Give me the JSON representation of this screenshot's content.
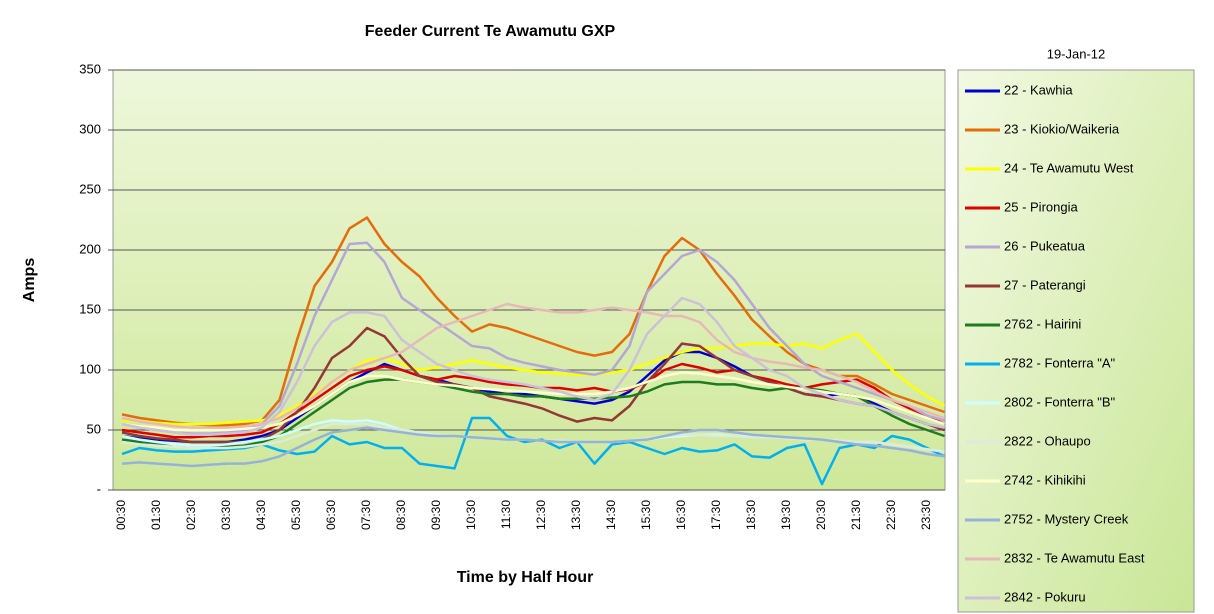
{
  "chart_data": {
    "type": "line",
    "title": "Feeder Current Te Awamutu GXP",
    "subtitle": "19-Jan-12",
    "x_label": "Time by Half Hour",
    "y_label": "Amps",
    "categories": [
      "00:30",
      null,
      "01:30",
      null,
      "02:30",
      null,
      "03:30",
      null,
      "04:30",
      null,
      "05:30",
      null,
      "06:30",
      null,
      "07:30",
      null,
      "08:30",
      null,
      "09:30",
      null,
      "10:30",
      null,
      "11:30",
      null,
      "12:30",
      null,
      "13:30",
      null,
      "14:30",
      null,
      "15:30",
      null,
      "16:30",
      null,
      "17:30",
      null,
      "18:30",
      null,
      "19:30",
      null,
      "20:30",
      null,
      "21:30",
      null,
      "22:30",
      null,
      "23:30",
      null
    ],
    "ylim": [
      0,
      350
    ],
    "yticks": [
      {
        "value": 0,
        "label": "-"
      },
      50,
      100,
      150,
      200,
      250,
      300,
      350
    ],
    "grid": true,
    "legend": "right",
    "series": [
      {
        "name": "22 - Kawhia",
        "color": "#0000cc",
        "values": [
          45,
          43,
          42,
          41,
          40,
          40,
          40,
          42,
          45,
          50,
          60,
          70,
          80,
          90,
          98,
          105,
          100,
          95,
          92,
          88,
          85,
          82,
          80,
          80,
          78,
          76,
          74,
          72,
          75,
          82,
          95,
          108,
          115,
          115,
          110,
          103,
          95,
          90,
          85,
          80,
          78,
          80,
          78,
          72,
          65,
          60,
          55,
          50
        ]
      },
      {
        "name": "23 - Kiokio/Waikeria",
        "color": "#e46c0a",
        "values": [
          63,
          60,
          58,
          56,
          55,
          54,
          54,
          55,
          58,
          75,
          125,
          170,
          190,
          218,
          227,
          205,
          190,
          178,
          160,
          145,
          132,
          138,
          135,
          130,
          125,
          120,
          115,
          112,
          115,
          130,
          165,
          195,
          210,
          200,
          180,
          162,
          142,
          128,
          115,
          105,
          100,
          95,
          95,
          88,
          80,
          75,
          70,
          65
        ]
      },
      {
        "name": "24 - Te Awamutu West",
        "color": "#ffff00",
        "values": [
          58,
          57,
          56,
          55,
          55,
          55,
          56,
          57,
          58,
          62,
          70,
          80,
          90,
          100,
          108,
          110,
          105,
          100,
          102,
          105,
          108,
          105,
          102,
          100,
          98,
          97,
          96,
          96,
          98,
          100,
          105,
          110,
          115,
          118,
          118,
          120,
          122,
          122,
          120,
          122,
          118,
          125,
          130,
          115,
          100,
          88,
          78,
          70
        ]
      },
      {
        "name": "25 - Pirongia",
        "color": "#e00000",
        "values": [
          50,
          48,
          46,
          44,
          44,
          45,
          45,
          46,
          48,
          55,
          65,
          75,
          85,
          95,
          100,
          103,
          100,
          95,
          92,
          95,
          93,
          90,
          88,
          87,
          85,
          85,
          83,
          85,
          82,
          84,
          90,
          100,
          105,
          102,
          98,
          100,
          95,
          92,
          88,
          85,
          88,
          90,
          92,
          85,
          75,
          68,
          62,
          55
        ]
      },
      {
        "name": "26 - Pukeatua",
        "color": "#b4a7d6",
        "values": [
          55,
          52,
          50,
          48,
          47,
          47,
          48,
          50,
          55,
          70,
          105,
          145,
          175,
          205,
          206,
          190,
          160,
          150,
          140,
          130,
          120,
          118,
          110,
          106,
          103,
          100,
          98,
          96,
          100,
          120,
          165,
          180,
          195,
          200,
          190,
          175,
          155,
          135,
          120,
          105,
          95,
          90,
          85,
          80,
          75,
          70,
          62,
          58
        ]
      },
      {
        "name": "27 - Paterangi",
        "color": "#953735",
        "values": [
          48,
          45,
          43,
          42,
          40,
          40,
          40,
          40,
          42,
          50,
          65,
          85,
          110,
          120,
          135,
          128,
          110,
          95,
          90,
          88,
          85,
          78,
          75,
          72,
          68,
          62,
          57,
          60,
          58,
          70,
          90,
          105,
          122,
          120,
          110,
          100,
          95,
          90,
          85,
          80,
          78,
          75,
          72,
          70,
          65,
          60,
          55,
          50
        ]
      },
      {
        "name": "2762 - Hairini",
        "color": "#1e7b1e",
        "values": [
          42,
          40,
          38,
          37,
          36,
          36,
          36,
          37,
          40,
          45,
          55,
          65,
          75,
          85,
          90,
          92,
          92,
          90,
          88,
          85,
          82,
          80,
          80,
          78,
          78,
          76,
          76,
          76,
          77,
          78,
          82,
          88,
          90,
          90,
          88,
          88,
          85,
          83,
          85,
          85,
          83,
          80,
          78,
          70,
          62,
          55,
          50,
          45
        ]
      },
      {
        "name": "2782 - Fonterra \"A\"",
        "color": "#00b0f0",
        "values": [
          30,
          35,
          33,
          32,
          32,
          33,
          34,
          35,
          38,
          33,
          30,
          32,
          45,
          38,
          40,
          35,
          35,
          22,
          20,
          18,
          60,
          60,
          45,
          40,
          42,
          35,
          40,
          22,
          38,
          40,
          35,
          30,
          35,
          32,
          33,
          38,
          28,
          27,
          35,
          38,
          5,
          35,
          38,
          35,
          45,
          42,
          35,
          28
        ]
      },
      {
        "name": "2802 - Fonterra \"B\"",
        "color": "#ccffff",
        "values": [
          45,
          42,
          40,
          38,
          37,
          37,
          38,
          40,
          42,
          45,
          50,
          55,
          58,
          57,
          58,
          55,
          50,
          48,
          45,
          45,
          44,
          43,
          42,
          42,
          41,
          41,
          40,
          40,
          40,
          41,
          42,
          44,
          45,
          46,
          46,
          45,
          45,
          44,
          44,
          43,
          42,
          41,
          40,
          40,
          38,
          36,
          34,
          32
        ]
      },
      {
        "name": "2822 - Ohaupo",
        "color": "#dcebdc",
        "values": [
          40,
          38,
          37,
          36,
          35,
          35,
          35,
          36,
          38,
          40,
          45,
          50,
          55,
          55,
          55,
          52,
          50,
          48,
          46,
          45,
          44,
          43,
          42,
          42,
          41,
          41,
          40,
          40,
          40,
          41,
          43,
          45,
          46,
          46,
          45,
          45,
          44,
          44,
          43,
          42,
          42,
          41,
          40,
          40,
          38,
          36,
          34,
          32
        ]
      },
      {
        "name": "2742 - Kihikihi",
        "color": "#ffffcc",
        "values": [
          55,
          53,
          52,
          50,
          50,
          50,
          50,
          51,
          52,
          55,
          62,
          70,
          80,
          90,
          95,
          95,
          92,
          90,
          88,
          87,
          85,
          84,
          83,
          82,
          81,
          80,
          80,
          80,
          82,
          85,
          90,
          95,
          98,
          97,
          95,
          93,
          90,
          88,
          86,
          84,
          82,
          80,
          78,
          75,
          70,
          65,
          60,
          55
        ]
      },
      {
        "name": "2752 - Mystery Creek",
        "color": "#95b3d7",
        "values": [
          22,
          23,
          22,
          21,
          20,
          21,
          22,
          22,
          24,
          28,
          35,
          42,
          48,
          50,
          52,
          50,
          48,
          46,
          45,
          45,
          44,
          43,
          42,
          42,
          41,
          40,
          40,
          40,
          40,
          41,
          42,
          45,
          48,
          50,
          50,
          48,
          46,
          45,
          44,
          43,
          42,
          40,
          38,
          37,
          35,
          33,
          30,
          28
        ]
      },
      {
        "name": "2832 - Te Awamutu East",
        "color": "#e6b9b8",
        "values": [
          60,
          57,
          55,
          53,
          52,
          52,
          52,
          53,
          55,
          60,
          68,
          78,
          90,
          100,
          105,
          110,
          115,
          125,
          135,
          140,
          145,
          150,
          155,
          152,
          150,
          148,
          148,
          150,
          152,
          150,
          148,
          145,
          145,
          140,
          125,
          115,
          110,
          107,
          105,
          102,
          100,
          95,
          90,
          82,
          75,
          70,
          65,
          60
        ]
      },
      {
        "name": "2842 - Pokuru",
        "color": "#ccc0da",
        "values": [
          55,
          52,
          50,
          48,
          46,
          46,
          47,
          48,
          52,
          65,
          90,
          120,
          140,
          148,
          148,
          145,
          125,
          115,
          105,
          100,
          95,
          92,
          90,
          88,
          85,
          82,
          78,
          75,
          80,
          100,
          130,
          145,
          160,
          155,
          140,
          120,
          110,
          100,
          95,
          85,
          80,
          75,
          72,
          70,
          65,
          60,
          55,
          52
        ]
      }
    ]
  }
}
